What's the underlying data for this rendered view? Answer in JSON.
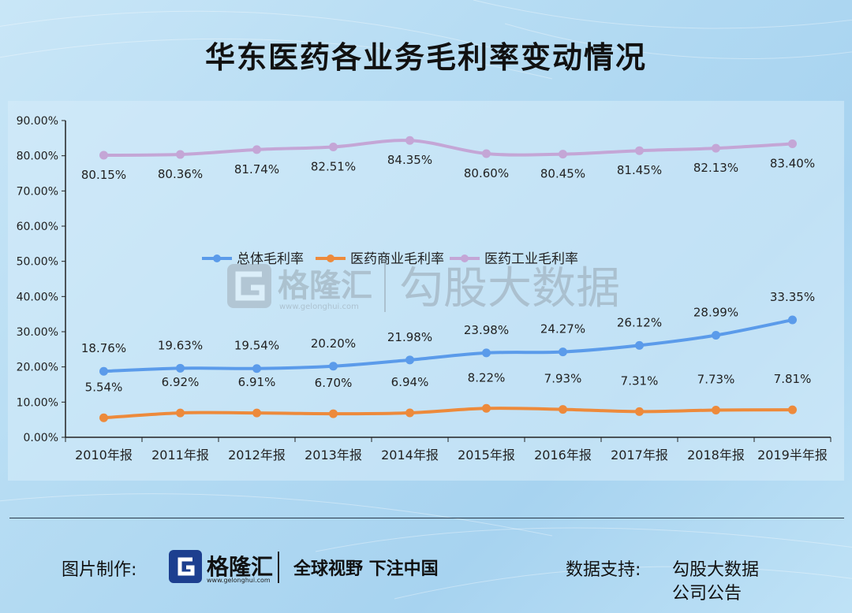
{
  "title": "华东医药各业务毛利率变动情况",
  "watermark": {
    "brand": "格隆汇",
    "url": "www.gelonghui.com",
    "secondary": "勾股大数据"
  },
  "footer": {
    "made_by_label": "图片制作:",
    "logo_name": "格隆汇",
    "logo_url": "www.gelonghui.com",
    "slogan": "全球视野 下注中国",
    "source_label": "数据支持:",
    "sources": [
      "勾股大数据",
      "公司公告"
    ]
  },
  "colors": {
    "total": "#5b9bea",
    "commercial": "#ed8a3b",
    "industrial": "#c4a6d6"
  },
  "chart_data": {
    "type": "line",
    "title": "华东医药各业务毛利率变动情况",
    "categories": [
      "2010年报",
      "2011年报",
      "2012年报",
      "2013年报",
      "2014年报",
      "2015年报",
      "2016年报",
      "2017年报",
      "2018年报",
      "2019半年报"
    ],
    "y_ticks": [
      "0.00%",
      "10.00%",
      "20.00%",
      "30.00%",
      "40.00%",
      "50.00%",
      "60.00%",
      "70.00%",
      "80.00%",
      "90.00%"
    ],
    "ylim": [
      0,
      90
    ],
    "legend_position": "center",
    "series": [
      {
        "name": "总体毛利率",
        "color": "#5b9bea",
        "values": [
          18.76,
          19.63,
          19.54,
          20.2,
          21.98,
          23.98,
          24.27,
          26.12,
          28.99,
          33.35
        ],
        "labels": [
          "18.76%",
          "19.63%",
          "19.54%",
          "20.20%",
          "21.98%",
          "23.98%",
          "24.27%",
          "26.12%",
          "28.99%",
          "33.35%"
        ]
      },
      {
        "name": "医药商业毛利率",
        "color": "#ed8a3b",
        "values": [
          5.54,
          6.92,
          6.91,
          6.7,
          6.94,
          8.22,
          7.93,
          7.31,
          7.73,
          7.81
        ],
        "labels": [
          "5.54%",
          "6.92%",
          "6.91%",
          "6.70%",
          "6.94%",
          "8.22%",
          "7.93%",
          "7.31%",
          "7.73%",
          "7.81%"
        ]
      },
      {
        "name": "医药工业毛利率",
        "color": "#c4a6d6",
        "values": [
          80.15,
          80.36,
          81.74,
          82.51,
          84.35,
          80.6,
          80.45,
          81.45,
          82.13,
          83.4
        ],
        "labels": [
          "80.15%",
          "80.36%",
          "81.74%",
          "82.51%",
          "84.35%",
          "80.60%",
          "80.45%",
          "81.45%",
          "82.13%",
          "83.40%"
        ]
      }
    ]
  }
}
